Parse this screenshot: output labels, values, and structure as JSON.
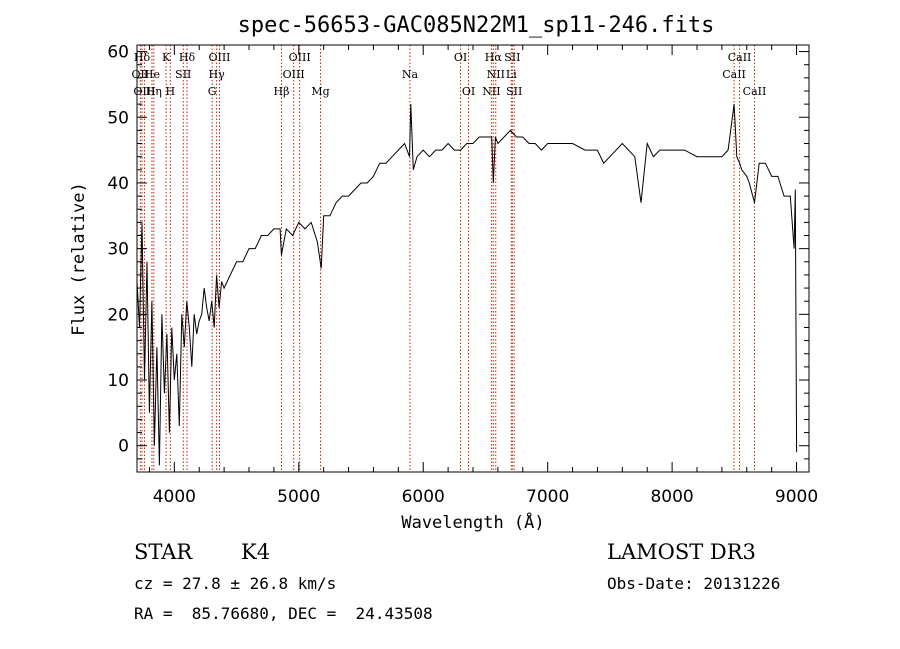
{
  "chart_data": {
    "type": "line",
    "title": "spec-56653-GAC085N22M1_sp11-246.fits",
    "xlabel": "Wavelength (Å)",
    "ylabel": "Flux (relative)",
    "xlim": [
      3700,
      9100
    ],
    "ylim": [
      -4,
      61
    ],
    "xticks": [
      4000,
      5000,
      6000,
      7000,
      8000,
      9000
    ],
    "yticks": [
      0,
      10,
      20,
      30,
      40,
      50,
      60
    ],
    "grid": false,
    "line_color": "#000000",
    "marker_color": "#cc2200",
    "series": [
      {
        "x": [
          3700,
          3720,
          3740,
          3760,
          3780,
          3800,
          3820,
          3840,
          3860,
          3880,
          3900,
          3920,
          3940,
          3960,
          3980,
          4000,
          4020,
          4040,
          4060,
          4080,
          4100,
          4120,
          4140,
          4160,
          4180,
          4200,
          4220,
          4240,
          4260,
          4280,
          4300,
          4320,
          4340,
          4360,
          4380,
          4400,
          4450,
          4500,
          4550,
          4600,
          4650,
          4700,
          4750,
          4800,
          4850,
          4860,
          4900,
          4950,
          5000,
          5050,
          5100,
          5150,
          5180,
          5200,
          5250,
          5300,
          5350,
          5400,
          5450,
          5500,
          5550,
          5600,
          5650,
          5700,
          5750,
          5800,
          5850,
          5890,
          5900,
          5920,
          5950,
          6000,
          6050,
          6100,
          6150,
          6200,
          6250,
          6300,
          6350,
          6400,
          6450,
          6500,
          6550,
          6563,
          6580,
          6600,
          6650,
          6700,
          6750,
          6800,
          6850,
          6900,
          6950,
          7000,
          7100,
          7200,
          7300,
          7400,
          7450,
          7500,
          7600,
          7700,
          7750,
          7800,
          7850,
          7900,
          8000,
          8100,
          8200,
          8300,
          8400,
          8450,
          8498,
          8520,
          8542,
          8560,
          8600,
          8620,
          8662,
          8700,
          8750,
          8800,
          8850,
          8900,
          8950,
          8980,
          8990,
          9000
        ],
        "y": [
          25,
          18,
          34,
          10,
          28,
          5,
          22,
          0,
          15,
          -3,
          20,
          8,
          17,
          2,
          18,
          10,
          14,
          3,
          20,
          15,
          22,
          18,
          12,
          20,
          17,
          19,
          20,
          24,
          21,
          19,
          22,
          18,
          26,
          21,
          25,
          24,
          26,
          28,
          28,
          30,
          30,
          32,
          32,
          33,
          33,
          29,
          33,
          32,
          34,
          33,
          34,
          31,
          27,
          35,
          35,
          37,
          38,
          38,
          39,
          40,
          40,
          41,
          43,
          43,
          44,
          45,
          46,
          44,
          52,
          42,
          44,
          45,
          44,
          45,
          45,
          46,
          45,
          45,
          46,
          46,
          47,
          47,
          47,
          40,
          47,
          46,
          47,
          48,
          47,
          47,
          46,
          46,
          45,
          46,
          46,
          46,
          45,
          45,
          43,
          44,
          46,
          44,
          37,
          46,
          44,
          45,
          45,
          45,
          44,
          44,
          44,
          45,
          52,
          44,
          43,
          42,
          41,
          40,
          37,
          43,
          43,
          41,
          41,
          38,
          38,
          30,
          39,
          -1
        ]
      }
    ],
    "spectral_lines": [
      {
        "label": "Hδ",
        "x": 3740,
        "row": 1
      },
      {
        "label": "K",
        "x": 3934,
        "row": 1
      },
      {
        "label": "Hδ",
        "x": 4102,
        "row": 1
      },
      {
        "label": "OIII",
        "x": 4363,
        "row": 1
      },
      {
        "label": "OIII",
        "x": 5007,
        "row": 1
      },
      {
        "label": "OI",
        "x": 6300,
        "row": 1
      },
      {
        "label": "Hα",
        "x": 6563,
        "row": 1
      },
      {
        "label": "SII",
        "x": 6716,
        "row": 1
      },
      {
        "label": "CaII",
        "x": 8542,
        "row": 1
      },
      {
        "label": "OII",
        "x": 3727,
        "row": 2
      },
      {
        "label": "He",
        "x": 3820,
        "row": 2
      },
      {
        "label": "SII",
        "x": 4072,
        "row": 2
      },
      {
        "label": "Hγ",
        "x": 4340,
        "row": 2
      },
      {
        "label": "OIII",
        "x": 4959,
        "row": 2
      },
      {
        "label": "Na",
        "x": 5893,
        "row": 2
      },
      {
        "label": "NII",
        "x": 6583,
        "row": 2
      },
      {
        "label": "Li",
        "x": 6708,
        "row": 2
      },
      {
        "label": "CaII",
        "x": 8498,
        "row": 2
      },
      {
        "label": "OIII",
        "x": 3760,
        "row": 3
      },
      {
        "label": "Hη",
        "x": 3835,
        "row": 3
      },
      {
        "label": "H",
        "x": 3968,
        "row": 3
      },
      {
        "label": "G",
        "x": 4304,
        "row": 3
      },
      {
        "label": "Hβ",
        "x": 4861,
        "row": 3
      },
      {
        "label": "Mg",
        "x": 5175,
        "row": 3
      },
      {
        "label": "OI",
        "x": 6364,
        "row": 3
      },
      {
        "label": "NII",
        "x": 6548,
        "row": 3
      },
      {
        "label": "SII",
        "x": 6731,
        "row": 3
      },
      {
        "label": "CaII",
        "x": 8662,
        "row": 3
      }
    ]
  },
  "info": {
    "class": "STAR",
    "subclass": "K4",
    "survey": "LAMOST DR3",
    "cz": "cz = 27.8 ± 26.8 km/s",
    "obs_date": "Obs-Date: 20131226",
    "coords": "RA =  85.76680, DEC =  24.43508"
  }
}
